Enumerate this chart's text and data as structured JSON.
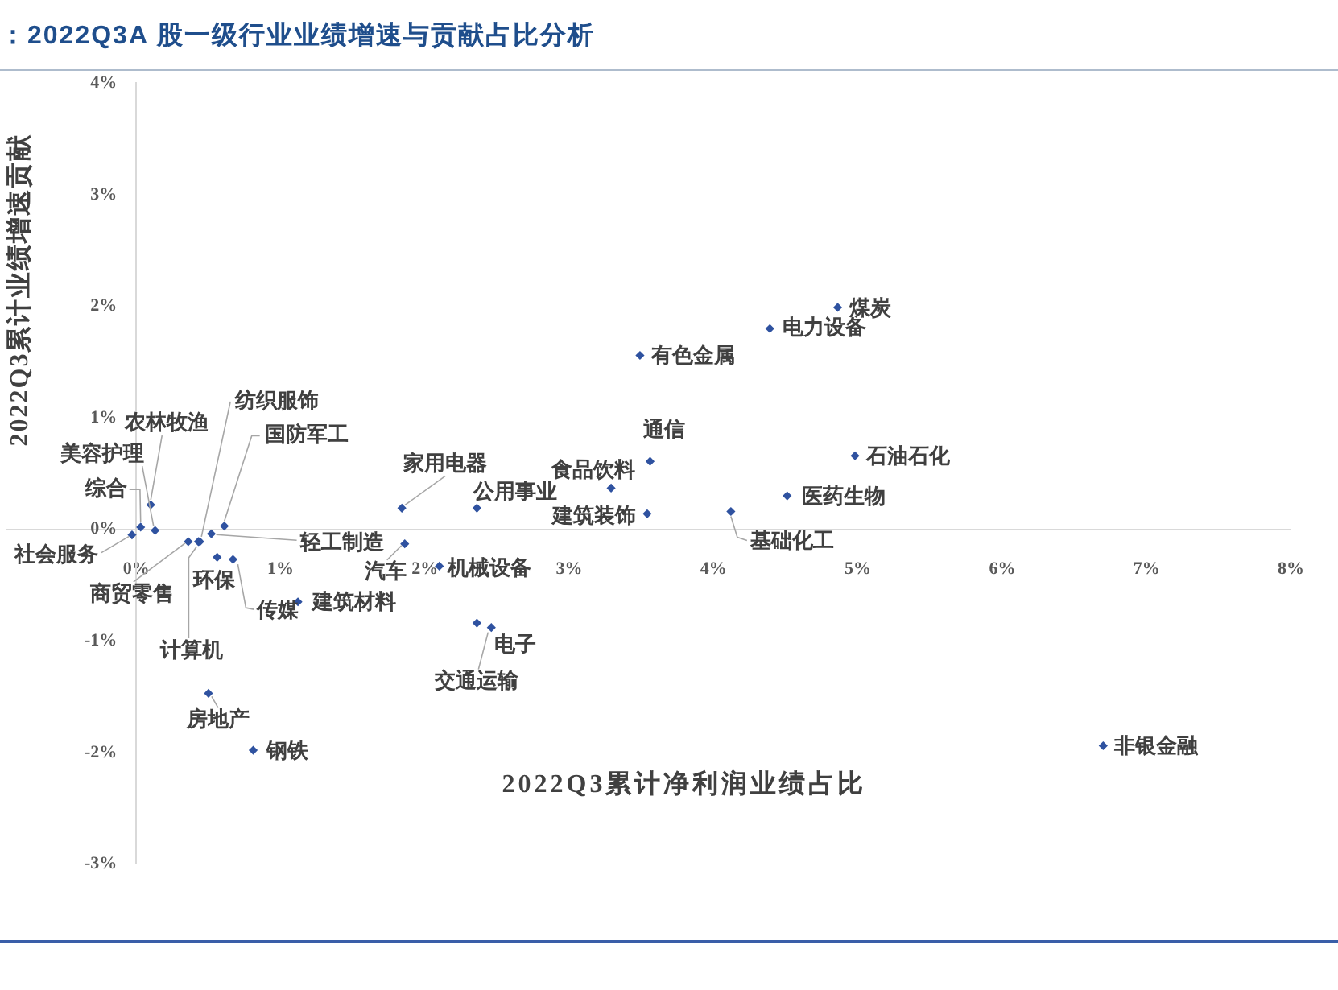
{
  "chart_data": {
    "type": "scatter",
    "title": "：2022Q3A 股一级行业业绩增速与贡献占比分析",
    "xlabel": "2022Q3累计净利润业绩占比",
    "ylabel": "2022Q3累计业绩增速贡献",
    "series": [
      {
        "color": "#2f52a0",
        "x": [
          4.86,
          4.39,
          3.49,
          3.56,
          4.98,
          3.29,
          4.51,
          3.54,
          4.12,
          1.84,
          2.36,
          1.86,
          2.1,
          2.36,
          2.46,
          6.7,
          0.81,
          0.5,
          1.12,
          0.67,
          0.43,
          0.56,
          0.36,
          0.52,
          0.61,
          0.44,
          0.13,
          0.1,
          0.03,
          -0.03
        ],
        "values": [
          1.99,
          1.8,
          1.56,
          0.61,
          0.66,
          0.37,
          0.3,
          0.14,
          0.16,
          0.19,
          0.19,
          -0.13,
          -0.33,
          -0.84,
          -0.88,
          -1.94,
          -1.98,
          -1.47,
          -0.65,
          -0.27,
          -0.11,
          -0.25,
          -0.11,
          -0.04,
          0.03,
          -0.11,
          -0.01,
          0.22,
          0.02,
          -0.05
        ]
      }
    ],
    "annotations": [
      {
        "text": "煤炭",
        "x": 4.86,
        "y": 1.99
      },
      {
        "text": "电力设备",
        "x": 4.39,
        "y": 1.8
      },
      {
        "text": "有色金属",
        "x": 3.49,
        "y": 1.56
      },
      {
        "text": "通信",
        "x": 3.56,
        "y": 0.61
      },
      {
        "text": "石油石化",
        "x": 4.98,
        "y": 0.66
      },
      {
        "text": "食品饮料",
        "x": 3.29,
        "y": 0.37
      },
      {
        "text": "医药生物",
        "x": 4.51,
        "y": 0.3
      },
      {
        "text": "建筑装饰",
        "x": 3.54,
        "y": 0.14
      },
      {
        "text": "基础化工",
        "x": 4.12,
        "y": 0.16
      },
      {
        "text": "家用电器",
        "x": 1.84,
        "y": 0.19
      },
      {
        "text": "公用事业",
        "x": 2.36,
        "y": 0.19
      },
      {
        "text": "汽车",
        "x": 1.86,
        "y": -0.13
      },
      {
        "text": "机械设备",
        "x": 2.1,
        "y": -0.33
      },
      {
        "text": "电子",
        "x": 2.36,
        "y": -0.84
      },
      {
        "text": "交通运输",
        "x": 2.46,
        "y": -0.88
      },
      {
        "text": "非银金融",
        "x": 6.7,
        "y": -1.94
      },
      {
        "text": "钢铁",
        "x": 0.81,
        "y": -1.98
      },
      {
        "text": "房地产",
        "x": 0.5,
        "y": -1.47
      },
      {
        "text": "建筑材料",
        "x": 1.12,
        "y": -0.65
      },
      {
        "text": "传媒",
        "x": 0.67,
        "y": -0.27
      },
      {
        "text": "计算机",
        "x": 0.43,
        "y": -0.11
      },
      {
        "text": "环保",
        "x": 0.56,
        "y": -0.25
      },
      {
        "text": "商贸零售",
        "x": 0.36,
        "y": -0.11
      },
      {
        "text": "轻工制造",
        "x": 0.52,
        "y": -0.04
      },
      {
        "text": "国防军工",
        "x": 0.61,
        "y": 0.03
      },
      {
        "text": "纺织服饰",
        "x": 0.44,
        "y": -0.11
      },
      {
        "text": "美容护理",
        "x": 0.13,
        "y": -0.01
      },
      {
        "text": "农林牧渔",
        "x": 0.1,
        "y": 0.22
      },
      {
        "text": "综合",
        "x": 0.03,
        "y": 0.02
      },
      {
        "text": "社会服务",
        "x": -0.03,
        "y": -0.05
      }
    ],
    "xlim": [
      -0.9,
      8
    ],
    "xticks": [
      {
        "value": 0,
        "label": "0%"
      },
      {
        "value": 1,
        "label": "1%"
      },
      {
        "value": 2,
        "label": "2%"
      },
      {
        "value": 3,
        "label": "3%"
      },
      {
        "value": 4,
        "label": "4%"
      },
      {
        "value": 5,
        "label": "5%"
      },
      {
        "value": 6,
        "label": "6%"
      },
      {
        "value": 7,
        "label": "7%"
      },
      {
        "value": 8,
        "label": "8%"
      }
    ],
    "ylim": [
      -3,
      4
    ],
    "yticks": [
      {
        "value": -3,
        "label": "-3%"
      },
      {
        "value": -2,
        "label": "-2%"
      },
      {
        "value": -1,
        "label": "-1%"
      },
      {
        "value": 0,
        "label": "0%"
      },
      {
        "value": 1,
        "label": "1%"
      },
      {
        "value": 2,
        "label": "2%"
      },
      {
        "value": 3,
        "label": "3%"
      },
      {
        "value": 4,
        "label": "4%"
      }
    ],
    "grid": false,
    "legend": false,
    "marker": "diamond"
  }
}
